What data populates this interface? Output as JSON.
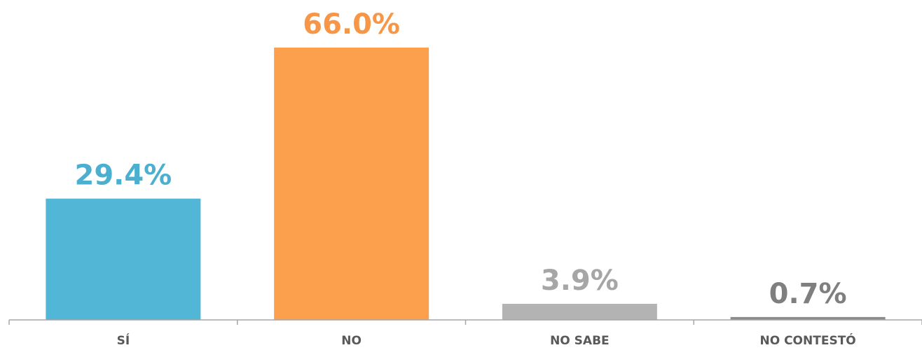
{
  "chart_data": {
    "type": "bar",
    "categories": [
      "SÍ",
      "NO",
      "NO SABE",
      "NO CONTESTÓ"
    ],
    "values": [
      29.4,
      66.0,
      3.9,
      0.7
    ],
    "value_labels": [
      "29.4%",
      "66.0%",
      "3.9%",
      "0.7%"
    ],
    "colors": [
      "#52b7d6",
      "#fda04d",
      "#b3b3b3",
      "#8c8c8c"
    ],
    "label_colors": [
      "#4bb0cf",
      "#f79646",
      "#a6a6a6",
      "#7f7f7f"
    ],
    "title": "",
    "xlabel": "",
    "ylabel": "",
    "ylim": [
      0,
      70
    ],
    "grid": false,
    "legend": "none",
    "axis_color": "#a6a6a6"
  }
}
